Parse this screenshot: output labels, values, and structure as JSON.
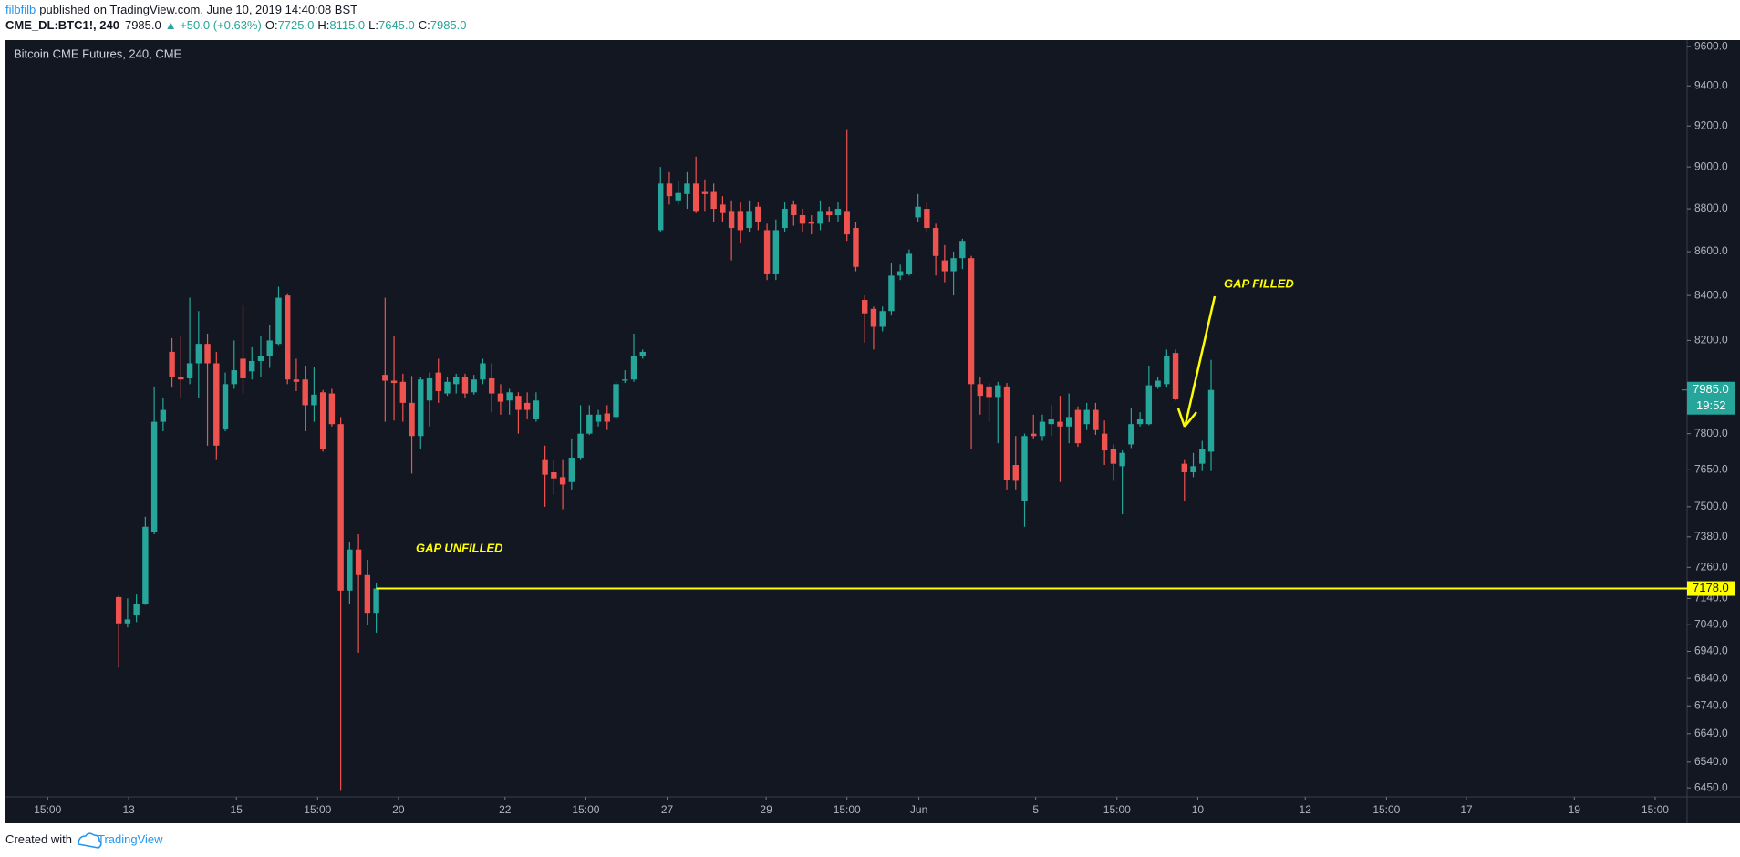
{
  "header": {
    "author": "filbfilb",
    "published": "published on TradingView.com, June 10, 2019 14:40:08 BST",
    "symbol": "CME_DL:BTC1!, 240",
    "price": "7985.0",
    "change": "▲ +50.0 (+0.63%)",
    "ohlc": [
      {
        "label": "O:",
        "value": "7725.0"
      },
      {
        "label": "H:",
        "value": "8115.0"
      },
      {
        "label": "L:",
        "value": "7645.0"
      },
      {
        "label": "C:",
        "value": "7985.0"
      }
    ]
  },
  "footer": {
    "created": "Created with",
    "brand": "TradingView"
  },
  "chart_data": {
    "type": "candlestick",
    "title": "Bitcoin CME Futures, 240, CME",
    "log_scale": true,
    "up_color": "#26a69a",
    "down_color": "#ef5350",
    "x": [
      8,
      9,
      10,
      11,
      12,
      13,
      14,
      15,
      16,
      17,
      18,
      19,
      20,
      21,
      22,
      23,
      24,
      25,
      26,
      27,
      28,
      29,
      30,
      31,
      32,
      33,
      34,
      35,
      36,
      37,
      38,
      39,
      40,
      41,
      42,
      43,
      44,
      45,
      46,
      47,
      48,
      49,
      50,
      51,
      52,
      53,
      54,
      55,
      56,
      57,
      58,
      59,
      60,
      61,
      62,
      63,
      64,
      65,
      66,
      67,
      69,
      70,
      71,
      72,
      73,
      74,
      75,
      76,
      77,
      78,
      79,
      80,
      81,
      82,
      83,
      84,
      85,
      86,
      87,
      88,
      89,
      90,
      91,
      92,
      93,
      94,
      95,
      96,
      97,
      98,
      99,
      100,
      101,
      102,
      103,
      104,
      105,
      106,
      107,
      108,
      109,
      110,
      111,
      112,
      113,
      114,
      115,
      116,
      117,
      118,
      119,
      120,
      121,
      122,
      123,
      124,
      125,
      126,
      127,
      128,
      129,
      130,
      131
    ],
    "open": [
      7145,
      7045,
      7075,
      7120,
      7400,
      7850,
      8150,
      8040,
      8035,
      8100,
      8185,
      8100,
      7820,
      8010,
      8120,
      8065,
      8110,
      8130,
      8185,
      8400,
      8030,
      8030,
      7920,
      7975,
      7970,
      7840,
      7170,
      7330,
      7230,
      7085,
      8050,
      8025,
      8020,
      7930,
      7790,
      7940,
      8060,
      7970,
      8010,
      8040,
      7975,
      8030,
      8035,
      7970,
      7940,
      7960,
      7930,
      7860,
      7690,
      7640,
      7620,
      7600,
      7700,
      7800,
      7850,
      7885,
      7870,
      8025,
      8030,
      8130,
      8700,
      8920,
      8840,
      8870,
      8920,
      8880,
      8880,
      8820,
      8790,
      8790,
      8710,
      8810,
      8700,
      8500,
      8710,
      8820,
      8770,
      8740,
      8730,
      8790,
      8770,
      8790,
      8710,
      8380,
      8340,
      8260,
      8330,
      8490,
      8500,
      8760,
      8800,
      8710,
      8560,
      8510,
      8570,
      8570,
      8010,
      8000,
      7955,
      8000,
      7670,
      7525,
      7800,
      7790,
      7840,
      7850,
      7830,
      7900,
      7840,
      7900,
      7800,
      7735,
      7665,
      7755,
      7840,
      7840,
      8000,
      8010,
      8145,
      7675,
      7640,
      7675,
      7725
    ],
    "high": [
      7150,
      7140,
      7155,
      7460,
      8000,
      7950,
      8210,
      8220,
      8390,
      8330,
      8230,
      8150,
      8060,
      8200,
      8360,
      8170,
      8220,
      8270,
      8440,
      8410,
      8120,
      8090,
      8085,
      7985,
      7990,
      7870,
      7360,
      7390,
      7290,
      7200,
      8390,
      8220,
      8055,
      8045,
      8040,
      8060,
      8120,
      8040,
      8055,
      8055,
      8050,
      8120,
      8100,
      8010,
      7990,
      7975,
      7975,
      7975,
      7750,
      7690,
      7690,
      7780,
      7920,
      7920,
      7900,
      7920,
      8020,
      8070,
      8230,
      8160,
      9000,
      8975,
      8930,
      8975,
      9050,
      8940,
      8920,
      8860,
      8840,
      8830,
      8840,
      8830,
      8730,
      8750,
      8830,
      8840,
      8800,
      8770,
      8840,
      8810,
      8830,
      9180,
      8740,
      8400,
      8350,
      8350,
      8550,
      8540,
      8610,
      8870,
      8830,
      8730,
      8630,
      8600,
      8660,
      8580,
      8040,
      8015,
      8020,
      8015,
      7790,
      7800,
      7880,
      7880,
      7920,
      7960,
      7970,
      7915,
      7930,
      7930,
      7855,
      7755,
      7730,
      7910,
      7890,
      8090,
      8040,
      8160,
      8160,
      7690,
      7720,
      7770,
      8115
    ],
    "low": [
      6880,
      7030,
      7050,
      7115,
      7390,
      7810,
      7995,
      7950,
      8010,
      7950,
      7750,
      7690,
      7810,
      7990,
      7970,
      8030,
      8040,
      8080,
      8180,
      8010,
      7980,
      7810,
      7850,
      7725,
      7830,
      6440,
      7120,
      6935,
      7040,
      7010,
      7850,
      7855,
      7850,
      7635,
      7735,
      7830,
      7930,
      7960,
      7970,
      7950,
      7965,
      8010,
      7890,
      7880,
      7880,
      7800,
      7860,
      7850,
      7500,
      7550,
      7490,
      7570,
      7690,
      7795,
      7830,
      7815,
      7860,
      8015,
      8020,
      8120,
      8690,
      8820,
      8820,
      8800,
      8780,
      8790,
      8740,
      8740,
      8560,
      8640,
      8690,
      8700,
      8470,
      8470,
      8690,
      8720,
      8690,
      8680,
      8700,
      8740,
      8740,
      8650,
      8510,
      8190,
      8160,
      8240,
      8310,
      8470,
      8490,
      8740,
      8690,
      8490,
      8460,
      8400,
      8520,
      7735,
      7880,
      7850,
      7760,
      7570,
      7570,
      7420,
      7780,
      7770,
      7790,
      7600,
      7760,
      7745,
      7815,
      7795,
      7670,
      7605,
      7470,
      7740,
      7830,
      7835,
      7990,
      7995,
      7940,
      7525,
      7620,
      7645,
      7645
    ],
    "close": [
      7045,
      7060,
      7120,
      7420,
      7850,
      7900,
      8040,
      8030,
      8100,
      8185,
      8100,
      7750,
      8010,
      8070,
      8035,
      8110,
      8130,
      8200,
      8390,
      8030,
      8020,
      7920,
      7965,
      7735,
      7840,
      7170,
      7330,
      7230,
      7085,
      7178,
      8025,
      8015,
      7930,
      7790,
      8030,
      8035,
      7980,
      8020,
      8040,
      7970,
      8030,
      8100,
      7970,
      7935,
      7975,
      7900,
      7900,
      7940,
      7630,
      7615,
      7590,
      7700,
      7800,
      7880,
      7880,
      7850,
      8010,
      8030,
      8130,
      8150,
      8920,
      8860,
      8875,
      8920,
      8790,
      8870,
      8800,
      8780,
      8710,
      8700,
      8790,
      8740,
      8500,
      8700,
      8800,
      8770,
      8730,
      8730,
      8790,
      8770,
      8800,
      8680,
      8530,
      8320,
      8260,
      8330,
      8490,
      8510,
      8590,
      8810,
      8710,
      8580,
      8510,
      8570,
      8650,
      8010,
      7960,
      7955,
      8005,
      7610,
      7605,
      7790,
      7790,
      7850,
      7860,
      7830,
      7870,
      7760,
      7900,
      7815,
      7730,
      7675,
      7720,
      7840,
      7860,
      8005,
      8025,
      8130,
      7945,
      7640,
      7665,
      7735,
      7985
    ],
    "xlim": [
      -4.75,
      184.6
    ],
    "xticks": [
      {
        "value": 0,
        "label": "15:00"
      },
      {
        "value": 9.125,
        "label": "13"
      },
      {
        "value": 21.25,
        "label": "15"
      },
      {
        "value": 30.4,
        "label": "15:00"
      },
      {
        "value": 39.5,
        "label": "20"
      },
      {
        "value": 51.5,
        "label": "22"
      },
      {
        "value": 60.6,
        "label": "15:00"
      },
      {
        "value": 69.75,
        "label": "27"
      },
      {
        "value": 80.9,
        "label": "29"
      },
      {
        "value": 90,
        "label": "15:00"
      },
      {
        "value": 98.1,
        "label": "Jun"
      },
      {
        "value": 111.25,
        "label": "5"
      },
      {
        "value": 120.4,
        "label": "15:00"
      },
      {
        "value": 129.5,
        "label": "10"
      },
      {
        "value": 141.6,
        "label": "12"
      },
      {
        "value": 150.75,
        "label": "15:00"
      },
      {
        "value": 159.75,
        "label": "17"
      },
      {
        "value": 171.9,
        "label": "19"
      },
      {
        "value": 181,
        "label": "15:00"
      }
    ],
    "ylim": [
      6419,
      9629
    ],
    "yticks": [
      {
        "value": 9600,
        "label": "9600.0"
      },
      {
        "value": 9400,
        "label": "9400.0"
      },
      {
        "value": 9200,
        "label": "9200.0"
      },
      {
        "value": 9000,
        "label": "9000.0"
      },
      {
        "value": 8800,
        "label": "8800.0"
      },
      {
        "value": 8600,
        "label": "8600.0"
      },
      {
        "value": 8400,
        "label": "8400.0"
      },
      {
        "value": 8200,
        "label": "8200.0"
      },
      {
        "value": 7800,
        "label": "7800.0"
      },
      {
        "value": 7650,
        "label": "7650.0"
      },
      {
        "value": 7500,
        "label": "7500.0"
      },
      {
        "value": 7380,
        "label": "7380.0"
      },
      {
        "value": 7260,
        "label": "7260.0"
      },
      {
        "value": 7140,
        "label": "7140.0"
      },
      {
        "value": 7040,
        "label": "7040.0"
      },
      {
        "value": 6940,
        "label": "6940.0"
      },
      {
        "value": 6840,
        "label": "6840.0"
      },
      {
        "value": 6740,
        "label": "6740.0"
      },
      {
        "value": 6640,
        "label": "6640.0"
      },
      {
        "value": 6540,
        "label": "6540.0"
      },
      {
        "value": 6450,
        "label": "6450.0"
      }
    ],
    "last_price": {
      "value": 7985,
      "label": "7985.0",
      "countdown": "19:52",
      "color": "#26a69a"
    },
    "hline": {
      "value": 7178,
      "label": "7178.0",
      "color": "#ffff00"
    },
    "annotations": [
      {
        "text": "GAP UNFILLED",
        "color": "#ffff00"
      },
      {
        "text": "GAP FILLED",
        "color": "#ffff00"
      }
    ]
  }
}
